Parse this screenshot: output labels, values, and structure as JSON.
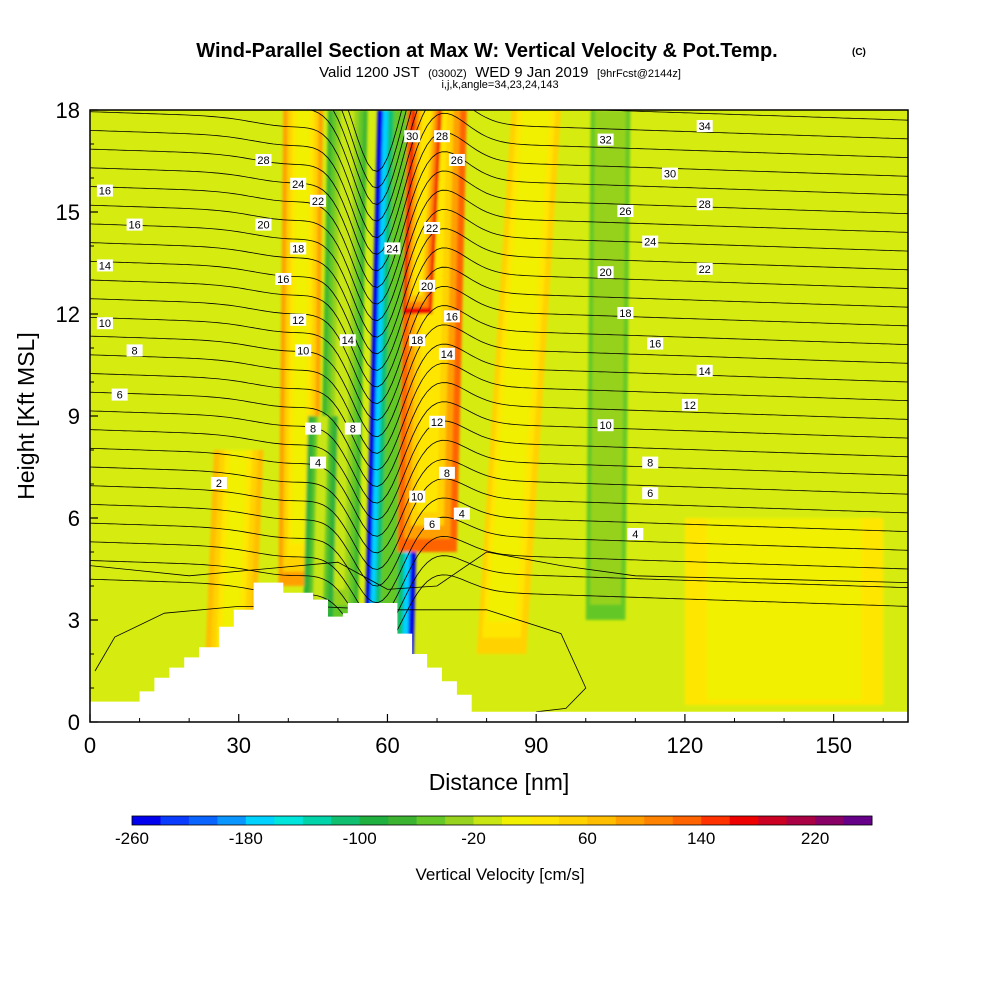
{
  "title": {
    "main": "Wind-Parallel Section at Max W: Vertical Velocity & Pot.Temp.",
    "copyright": "(C)",
    "valid_prefix": "Valid 1200 JST",
    "valid_utc": "(0300Z)",
    "valid_date": "WED 9 Jan 2019",
    "forecast": "[9hrFcst@2144z]",
    "indices": "i,j,k,angle=34,23,24,143"
  },
  "chart_data": {
    "type": "heatmap",
    "xlabel": "Distance [nm]",
    "ylabel": "Height [Kft MSL]",
    "xlim": [
      0,
      165
    ],
    "ylim": [
      0,
      18
    ],
    "x_ticks": [
      "0",
      "30",
      "60",
      "90",
      "120",
      "150"
    ],
    "y_ticks": [
      "0",
      "3",
      "6",
      "9",
      "12",
      "15",
      "18"
    ],
    "colorbar": {
      "title": "Vertical Velocity [cm/s]",
      "range": [
        -260,
        260
      ],
      "step": 20,
      "tick_labels": [
        "-260",
        "-180",
        "-100",
        "-20",
        "60",
        "140",
        "220"
      ],
      "colors": [
        "#0000ee",
        "#0a3cff",
        "#0a64ff",
        "#0a96ff",
        "#00d2ff",
        "#00e6dc",
        "#00d4a8",
        "#10c070",
        "#20b040",
        "#3cb432",
        "#64c828",
        "#96d21e",
        "#c8e614",
        "#f0f000",
        "#ffe600",
        "#ffd200",
        "#ffbe00",
        "#ffa000",
        "#ff8200",
        "#ff6400",
        "#ff3200",
        "#ee0000",
        "#cc0022",
        "#aa0044",
        "#880066",
        "#660088"
      ]
    },
    "terrain_kft": [
      [
        0,
        0.6
      ],
      [
        10,
        0.6
      ],
      [
        10,
        0.9
      ],
      [
        13,
        0.9
      ],
      [
        13,
        1.3
      ],
      [
        16,
        1.3
      ],
      [
        16,
        1.6
      ],
      [
        19,
        1.6
      ],
      [
        19,
        1.9
      ],
      [
        22,
        1.9
      ],
      [
        22,
        2.2
      ],
      [
        26,
        2.2
      ],
      [
        26,
        2.8
      ],
      [
        29,
        2.8
      ],
      [
        29,
        3.3
      ],
      [
        33,
        3.3
      ],
      [
        33,
        4.1
      ],
      [
        39,
        4.1
      ],
      [
        39,
        3.8
      ],
      [
        45,
        3.8
      ],
      [
        45,
        3.6
      ],
      [
        48,
        3.6
      ],
      [
        48,
        3.1
      ],
      [
        51,
        3.1
      ],
      [
        51,
        3.2
      ],
      [
        52,
        3.2
      ],
      [
        52,
        3.5
      ],
      [
        62,
        3.5
      ],
      [
        62,
        2.6
      ],
      [
        65,
        2.6
      ],
      [
        65,
        2.0
      ],
      [
        68,
        2.0
      ],
      [
        68,
        1.6
      ],
      [
        71,
        1.6
      ],
      [
        71,
        1.2
      ],
      [
        74,
        1.2
      ],
      [
        74,
        0.8
      ],
      [
        77,
        0.8
      ],
      [
        77,
        0.3
      ],
      [
        165,
        0.3
      ]
    ],
    "velocity_features": [
      {
        "x_center": 60,
        "x_top": 63,
        "half_width": 5,
        "z_range": [
          0.3,
          18
        ],
        "w": -250
      },
      {
        "x_center": 50,
        "x_top": 52,
        "half_width": 4,
        "z_range": [
          2.5,
          18
        ],
        "w": -70
      },
      {
        "x_center": 68,
        "x_top": 70,
        "half_width": 6,
        "z_range": [
          5,
          18
        ],
        "w": 120
      },
      {
        "x_center": 66,
        "x_top": 68,
        "half_width": 3,
        "z_range": [
          12,
          18
        ],
        "w": 170
      },
      {
        "x_center": 42,
        "x_top": 43,
        "half_width": 4,
        "z_range": [
          4,
          18
        ],
        "w": 80
      },
      {
        "x_center": 83,
        "x_top": 90,
        "half_width": 5,
        "z_range": [
          2,
          18
        ],
        "w": 40
      },
      {
        "x_center": 46,
        "x_top": 47,
        "half_width": 3,
        "z_range": [
          3,
          9
        ],
        "w": -100
      },
      {
        "x_center": 104,
        "x_top": 105,
        "half_width": 4,
        "z_range": [
          3,
          18
        ],
        "w": -50
      },
      {
        "x_center": 140,
        "x_top": 140,
        "half_width": 20,
        "z_range": [
          0.5,
          6
        ],
        "w": 25
      },
      {
        "x_center": 28,
        "x_top": 30,
        "half_width": 5,
        "z_range": [
          1,
          8
        ],
        "w": 70
      }
    ],
    "theta_labels": [
      {
        "text": "28",
        "x": 35,
        "z": 16.5
      },
      {
        "text": "24",
        "x": 42,
        "z": 15.8
      },
      {
        "text": "22",
        "x": 46,
        "z": 15.3
      },
      {
        "text": "20",
        "x": 35,
        "z": 14.6
      },
      {
        "text": "18",
        "x": 42,
        "z": 13.9
      },
      {
        "text": "16",
        "x": 39,
        "z": 13.0
      },
      {
        "text": "16",
        "x": 3,
        "z": 15.6
      },
      {
        "text": "16",
        "x": 9,
        "z": 14.6
      },
      {
        "text": "14",
        "x": 3,
        "z": 13.4
      },
      {
        "text": "12",
        "x": 42,
        "z": 11.8
      },
      {
        "text": "10",
        "x": 43,
        "z": 10.9
      },
      {
        "text": "14",
        "x": 52,
        "z": 11.2
      },
      {
        "text": "10",
        "x": 3,
        "z": 11.7
      },
      {
        "text": "8",
        "x": 9,
        "z": 10.9
      },
      {
        "text": "6",
        "x": 6,
        "z": 9.6
      },
      {
        "text": "8",
        "x": 45,
        "z": 8.6
      },
      {
        "text": "8",
        "x": 53,
        "z": 8.6
      },
      {
        "text": "4",
        "x": 46,
        "z": 7.6
      },
      {
        "text": "2",
        "x": 26,
        "z": 7.0
      },
      {
        "text": "30",
        "x": 65,
        "z": 17.2
      },
      {
        "text": "28",
        "x": 71,
        "z": 17.2
      },
      {
        "text": "26",
        "x": 74,
        "z": 16.5
      },
      {
        "text": "24",
        "x": 61,
        "z": 13.9
      },
      {
        "text": "22",
        "x": 69,
        "z": 14.5
      },
      {
        "text": "20",
        "x": 68,
        "z": 12.8
      },
      {
        "text": "16",
        "x": 73,
        "z": 11.9
      },
      {
        "text": "18",
        "x": 66,
        "z": 11.2
      },
      {
        "text": "14",
        "x": 72,
        "z": 10.8
      },
      {
        "text": "12",
        "x": 70,
        "z": 8.8
      },
      {
        "text": "8",
        "x": 72,
        "z": 7.3
      },
      {
        "text": "10",
        "x": 66,
        "z": 6.6
      },
      {
        "text": "4",
        "x": 75,
        "z": 6.1
      },
      {
        "text": "6",
        "x": 69,
        "z": 5.8
      },
      {
        "text": "32",
        "x": 104,
        "z": 17.1
      },
      {
        "text": "34",
        "x": 124,
        "z": 17.5
      },
      {
        "text": "30",
        "x": 117,
        "z": 16.1
      },
      {
        "text": "28",
        "x": 124,
        "z": 15.2
      },
      {
        "text": "26",
        "x": 108,
        "z": 15.0
      },
      {
        "text": "24",
        "x": 113,
        "z": 14.1
      },
      {
        "text": "22",
        "x": 124,
        "z": 13.3
      },
      {
        "text": "20",
        "x": 104,
        "z": 13.2
      },
      {
        "text": "18",
        "x": 108,
        "z": 12.0
      },
      {
        "text": "16",
        "x": 114,
        "z": 11.1
      },
      {
        "text": "14",
        "x": 124,
        "z": 10.3
      },
      {
        "text": "12",
        "x": 121,
        "z": 9.3
      },
      {
        "text": "10",
        "x": 104,
        "z": 8.7
      },
      {
        "text": "8",
        "x": 113,
        "z": 7.6
      },
      {
        "text": "6",
        "x": 113,
        "z": 6.7
      },
      {
        "text": "4",
        "x": 110,
        "z": 5.5
      }
    ]
  }
}
